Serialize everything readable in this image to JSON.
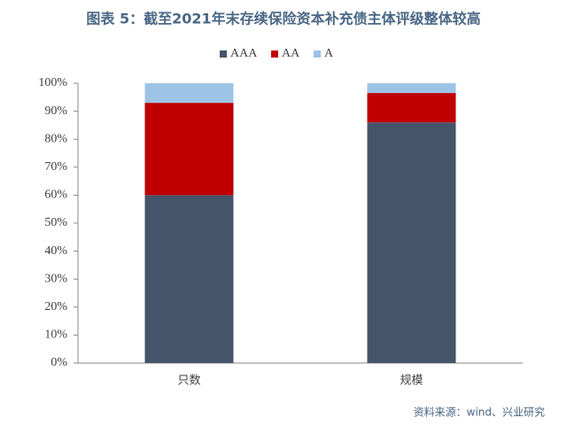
{
  "chart_data": {
    "type": "stacked_bar",
    "title": "图表 5：截至2021年末存续保险资本补充债主体评级整体较高",
    "source": "资料来源：wind、兴业研究",
    "categories": [
      "只数",
      "规模"
    ],
    "series": [
      {
        "name": "AAA",
        "color": "#44546a",
        "values": [
          60,
          86
        ]
      },
      {
        "name": "AA",
        "color": "#c00000",
        "values": [
          33,
          10.5
        ]
      },
      {
        "name": "A",
        "color": "#9dc3e6",
        "values": [
          7,
          3.5
        ]
      }
    ],
    "ylim": [
      0,
      100
    ],
    "yticks": [
      {
        "value": 0,
        "label": "0%"
      },
      {
        "value": 10,
        "label": "10%"
      },
      {
        "value": 20,
        "label": "20%"
      },
      {
        "value": 30,
        "label": "30%"
      },
      {
        "value": 40,
        "label": "40%"
      },
      {
        "value": 50,
        "label": "50%"
      },
      {
        "value": 60,
        "label": "60%"
      },
      {
        "value": 70,
        "label": "70%"
      },
      {
        "value": 80,
        "label": "80%"
      },
      {
        "value": 90,
        "label": "90%"
      },
      {
        "value": 100,
        "label": "100%"
      }
    ],
    "grid": false,
    "legend": "top"
  }
}
